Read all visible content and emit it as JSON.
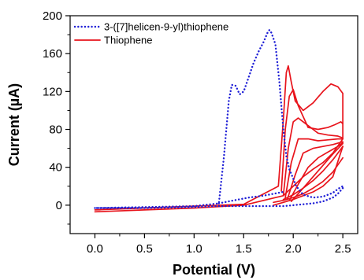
{
  "chart_data": {
    "type": "line",
    "title": "",
    "xlabel": "Potential (V)",
    "ylabel": "Current (µA)",
    "xlim": [
      -0.25,
      2.65
    ],
    "ylim": [
      -30,
      200
    ],
    "xticks": [
      0.0,
      0.5,
      1.0,
      1.5,
      2.0,
      2.5
    ],
    "xtick_labels": [
      "0.0",
      "0.5",
      "1.0",
      "1.5",
      "2.0",
      "2.5"
    ],
    "yticks": [
      0,
      40,
      80,
      120,
      160,
      200
    ],
    "ytick_labels": [
      "0",
      "40",
      "80",
      "120",
      "160",
      "200"
    ],
    "grid": false,
    "legend_position": "top-left",
    "series": [
      {
        "name": "3-([7]helicen-9-yl)thiophene",
        "color": "#1f1fd6",
        "style": "dotted",
        "curves": [
          {
            "x": [
              0.0,
              0.5,
              1.0,
              1.25,
              1.3,
              1.35,
              1.38,
              1.42,
              1.46,
              1.5,
              1.55,
              1.6,
              1.65,
              1.7,
              1.74,
              1.76,
              1.78,
              1.82,
              1.86,
              1.9,
              1.93,
              1.96,
              2.0,
              2.03,
              2.07,
              2.1,
              2.2,
              2.3,
              2.4,
              2.45,
              2.48,
              2.5
            ],
            "y": [
              -3,
              -2,
              -1,
              2,
              50,
              110,
              127,
              126,
              117,
              120,
              135,
              150,
              162,
              172,
              182,
              185,
              182,
              170,
              130,
              80,
              52,
              38,
              28,
              20,
              15,
              11,
              8,
              9,
              13,
              17,
              19,
              20
            ]
          },
          {
            "x": [
              2.5,
              2.45,
              2.4,
              2.3,
              2.2,
              2.1,
              2.0,
              1.9,
              1.8,
              1.6,
              1.4,
              1.3,
              1.2,
              1.0,
              0.5,
              0.0
            ],
            "y": [
              18,
              12,
              8,
              4,
              2,
              1,
              0,
              -1,
              -1,
              -1,
              -1,
              -1,
              -1,
              -2,
              -3,
              -3
            ]
          },
          {
            "x": [
              1.25,
              1.4,
              1.55,
              1.7,
              1.8,
              1.9
            ],
            "y": [
              2,
              5,
              8,
              10,
              12,
              14
            ]
          }
        ]
      },
      {
        "name": "Thiophene",
        "color": "#e8141c",
        "style": "solid",
        "curves": [
          {
            "x": [
              0.0,
              0.5,
              1.0,
              1.5,
              1.85,
              1.9,
              1.93,
              1.95,
              1.98,
              2.02,
              2.1,
              2.2,
              2.3,
              2.38,
              2.45,
              2.5,
              2.5,
              2.4,
              2.3,
              2.2,
              2.1,
              2.0,
              1.9,
              1.5,
              1.0,
              0.5,
              0.0
            ],
            "y": [
              -5,
              -3,
              -1,
              1,
              20,
              90,
              140,
              147,
              130,
              110,
              100,
              108,
              120,
              128,
              125,
              118,
              70,
              55,
              45,
              38,
              30,
              20,
              10,
              0,
              -3,
              -5,
              -7
            ]
          },
          {
            "x": [
              1.88,
              1.92,
              1.96,
              2.0,
              2.05,
              2.15,
              2.25,
              2.35,
              2.42,
              2.48,
              2.5
            ],
            "y": [
              15,
              80,
              115,
              122,
              105,
              82,
              80,
              82,
              85,
              88,
              86
            ]
          },
          {
            "x": [
              1.9,
              1.95,
              2.0,
              2.05,
              2.15,
              2.25,
              2.35,
              2.45,
              2.5
            ],
            "y": [
              10,
              60,
              88,
              92,
              84,
              76,
              74,
              73,
              71
            ]
          },
          {
            "x": [
              1.92,
              1.98,
              2.05,
              2.15,
              2.25,
              2.35,
              2.45,
              2.5
            ],
            "y": [
              8,
              45,
              70,
              70,
              68,
              69,
              70,
              70
            ]
          },
          {
            "x": [
              1.94,
              2.02,
              2.1,
              2.2,
              2.3,
              2.4,
              2.5
            ],
            "y": [
              6,
              32,
              55,
              60,
              62,
              64,
              67
            ]
          },
          {
            "x": [
              1.96,
              2.05,
              2.15,
              2.25,
              2.35,
              2.45,
              2.5
            ],
            "y": [
              5,
              22,
              40,
              50,
              56,
              62,
              66
            ]
          },
          {
            "x": [
              1.98,
              2.1,
              2.2,
              2.3,
              2.4,
              2.5
            ],
            "y": [
              4,
              18,
              30,
              42,
              54,
              65
            ]
          },
          {
            "x": [
              1.8,
              1.9,
              2.0,
              2.1,
              2.2,
              2.3,
              2.4,
              2.5
            ],
            "y": [
              0,
              3,
              6,
              10,
              14,
              20,
              30,
              62
            ]
          },
          {
            "x": [
              2.5,
              2.4,
              2.3,
              2.2,
              2.1,
              2.0,
              1.9,
              1.8
            ],
            "y": [
              50,
              35,
              25,
              18,
              12,
              8,
              5,
              3
            ]
          },
          {
            "x": [
              2.5,
              2.4,
              2.3,
              2.2,
              2.1,
              2.0,
              1.9
            ],
            "y": [
              62,
              48,
              36,
              26,
              18,
              11,
              6
            ]
          }
        ]
      }
    ]
  }
}
